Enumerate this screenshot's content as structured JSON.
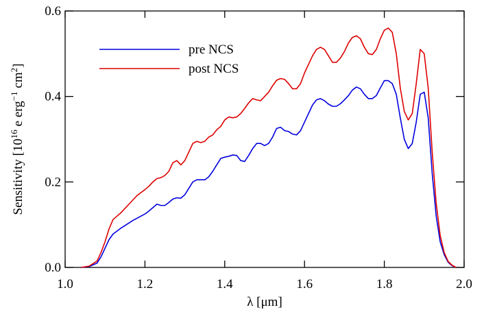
{
  "chart_data": {
    "type": "line",
    "xlabel": "λ [μm]",
    "ylabel": [
      "Sensitivity [10",
      "16",
      " e erg",
      "−1",
      " cm",
      "2",
      "]"
    ],
    "xlim": [
      1.0,
      2.0
    ],
    "ylim": [
      0.0,
      0.6
    ],
    "xticks": [
      {
        "value": 1.0,
        "label": "1.0"
      },
      1.2,
      1.4,
      1.6,
      1.8,
      {
        "value": 2.0,
        "label": "2.0"
      }
    ],
    "yticks": [
      {
        "value": 0.0,
        "label": "0.0"
      },
      0.2,
      0.4,
      0.6
    ],
    "legend": "upper left",
    "x": [
      1.04,
      1.06,
      1.08,
      1.09,
      1.1,
      1.11,
      1.12,
      1.13,
      1.14,
      1.15,
      1.16,
      1.17,
      1.18,
      1.19,
      1.2,
      1.21,
      1.22,
      1.23,
      1.24,
      1.25,
      1.26,
      1.27,
      1.28,
      1.29,
      1.3,
      1.31,
      1.32,
      1.33,
      1.34,
      1.35,
      1.36,
      1.37,
      1.38,
      1.39,
      1.4,
      1.41,
      1.42,
      1.43,
      1.44,
      1.45,
      1.46,
      1.47,
      1.48,
      1.49,
      1.5,
      1.51,
      1.52,
      1.53,
      1.54,
      1.55,
      1.56,
      1.57,
      1.58,
      1.59,
      1.6,
      1.61,
      1.62,
      1.63,
      1.64,
      1.65,
      1.66,
      1.67,
      1.68,
      1.69,
      1.7,
      1.71,
      1.72,
      1.73,
      1.74,
      1.75,
      1.76,
      1.77,
      1.78,
      1.79,
      1.8,
      1.81,
      1.82,
      1.83,
      1.84,
      1.85,
      1.86,
      1.87,
      1.88,
      1.89,
      1.9,
      1.91,
      1.92,
      1.93,
      1.94,
      1.95,
      1.96,
      1.97,
      1.98
    ],
    "series": [
      {
        "name": "pre NCS",
        "color": "#0000dd",
        "values": [
          0,
          0.002,
          0.01,
          0.025,
          0.045,
          0.065,
          0.078,
          0.085,
          0.092,
          0.098,
          0.104,
          0.11,
          0.115,
          0.12,
          0.125,
          0.132,
          0.14,
          0.148,
          0.145,
          0.145,
          0.152,
          0.16,
          0.163,
          0.162,
          0.17,
          0.185,
          0.2,
          0.205,
          0.205,
          0.205,
          0.212,
          0.225,
          0.24,
          0.255,
          0.258,
          0.26,
          0.263,
          0.262,
          0.25,
          0.248,
          0.262,
          0.278,
          0.29,
          0.29,
          0.285,
          0.29,
          0.305,
          0.325,
          0.328,
          0.32,
          0.318,
          0.312,
          0.31,
          0.32,
          0.34,
          0.36,
          0.38,
          0.392,
          0.395,
          0.39,
          0.382,
          0.377,
          0.377,
          0.383,
          0.392,
          0.402,
          0.415,
          0.422,
          0.418,
          0.405,
          0.395,
          0.395,
          0.402,
          0.42,
          0.437,
          0.437,
          0.43,
          0.405,
          0.35,
          0.3,
          0.278,
          0.29,
          0.34,
          0.405,
          0.41,
          0.35,
          0.22,
          0.12,
          0.06,
          0.03,
          0.012,
          0.004,
          0
        ]
      },
      {
        "name": "post NCS",
        "color": "#dd0000",
        "values": [
          0,
          0.003,
          0.015,
          0.035,
          0.06,
          0.09,
          0.112,
          0.12,
          0.128,
          0.138,
          0.148,
          0.158,
          0.168,
          0.175,
          0.182,
          0.19,
          0.2,
          0.208,
          0.21,
          0.215,
          0.225,
          0.245,
          0.25,
          0.24,
          0.25,
          0.27,
          0.29,
          0.295,
          0.292,
          0.295,
          0.305,
          0.31,
          0.322,
          0.33,
          0.345,
          0.352,
          0.35,
          0.352,
          0.36,
          0.372,
          0.385,
          0.395,
          0.392,
          0.39,
          0.4,
          0.41,
          0.425,
          0.438,
          0.442,
          0.44,
          0.43,
          0.418,
          0.418,
          0.43,
          0.455,
          0.475,
          0.495,
          0.51,
          0.515,
          0.51,
          0.495,
          0.48,
          0.48,
          0.49,
          0.505,
          0.525,
          0.538,
          0.542,
          0.535,
          0.515,
          0.5,
          0.498,
          0.51,
          0.535,
          0.555,
          0.56,
          0.55,
          0.5,
          0.42,
          0.365,
          0.345,
          0.36,
          0.43,
          0.51,
          0.5,
          0.42,
          0.27,
          0.15,
          0.075,
          0.035,
          0.014,
          0.005,
          0
        ]
      }
    ]
  }
}
